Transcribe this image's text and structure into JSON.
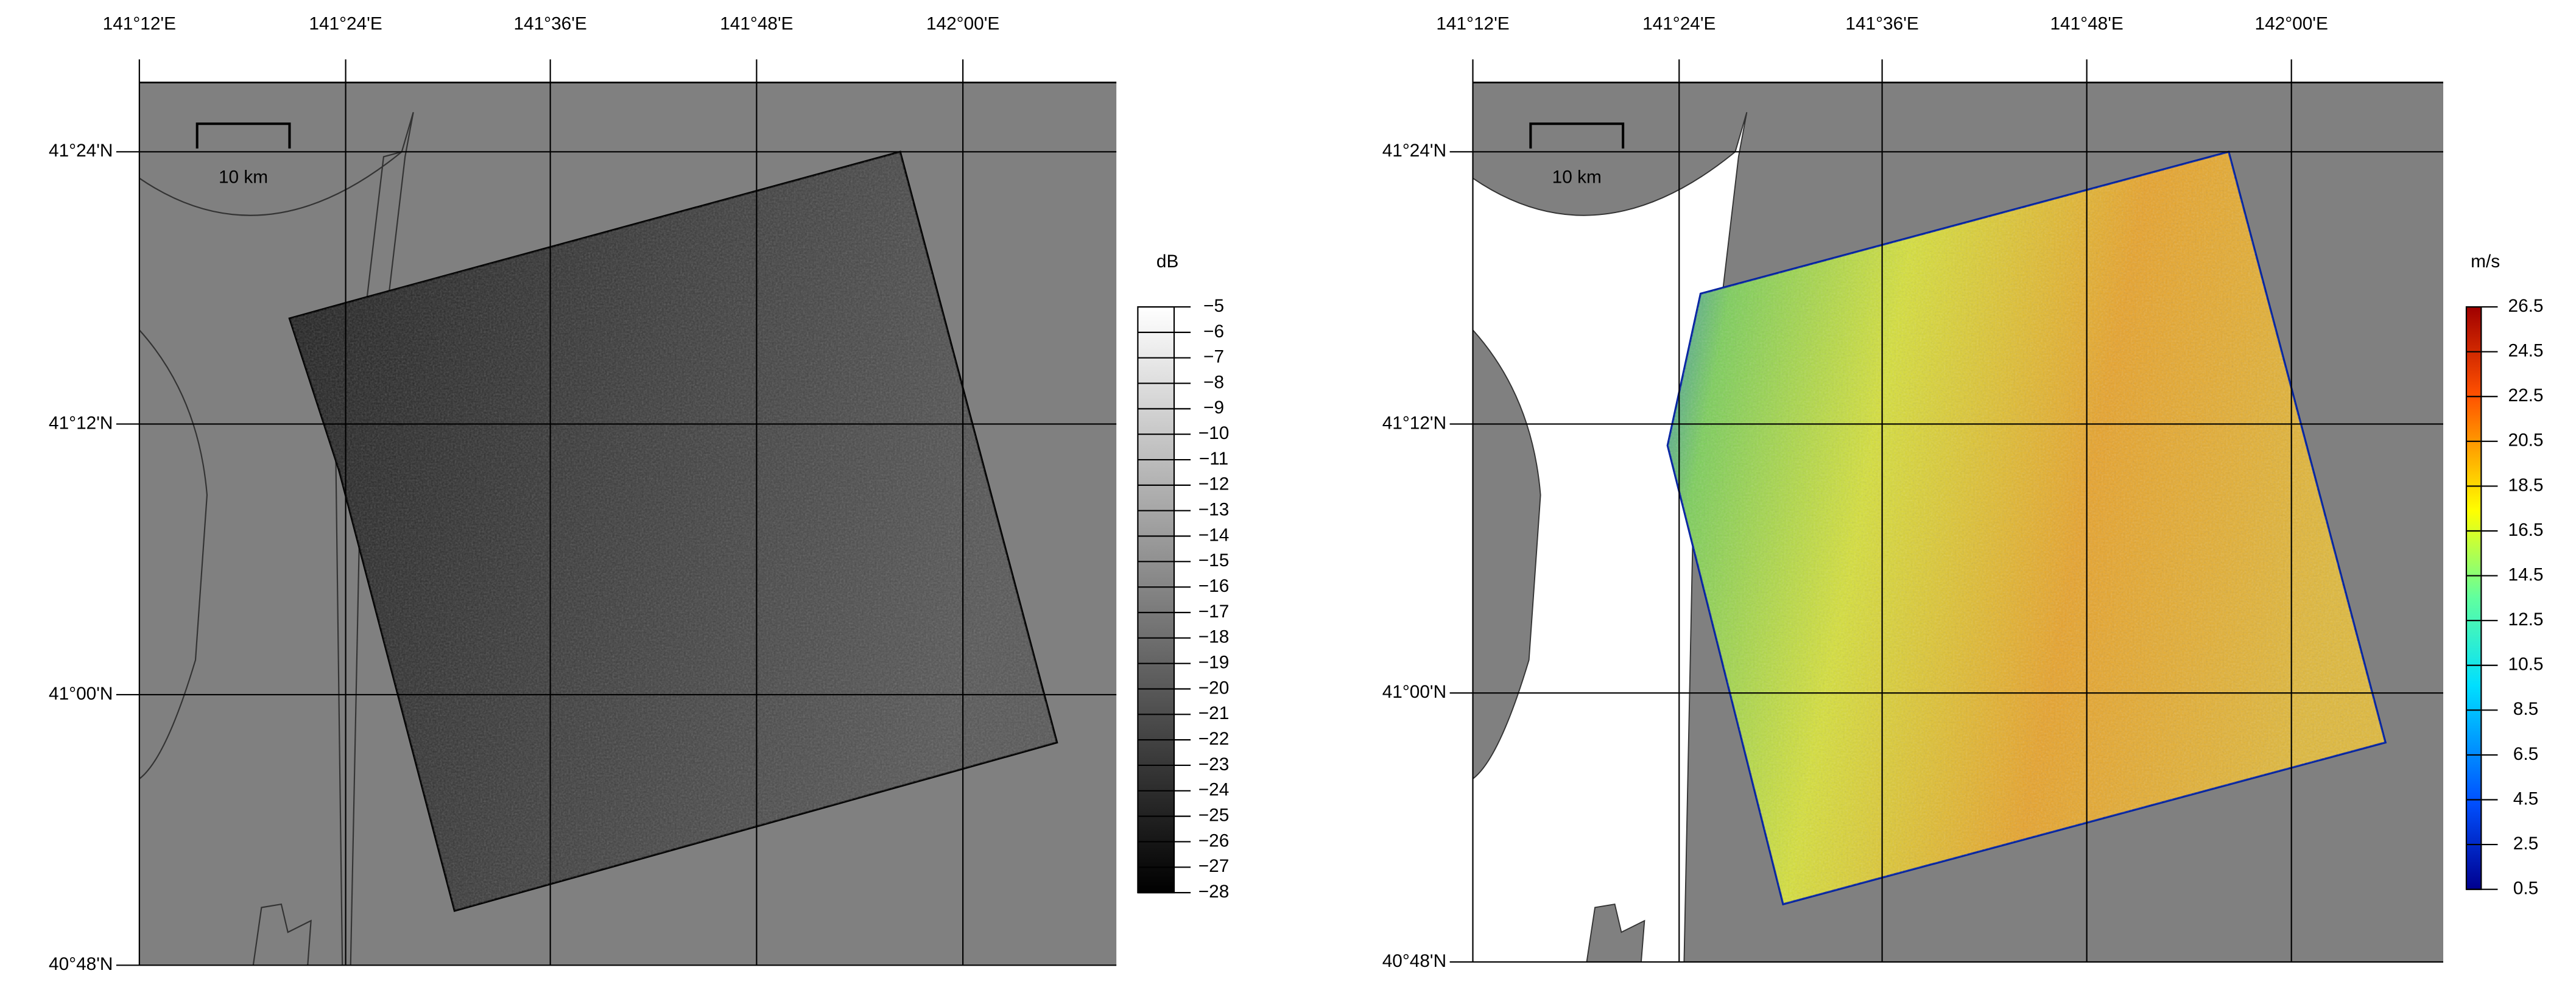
{
  "maps": [
    {
      "lon_labels": [
        "141°12'E",
        "141°24'E",
        "141°36'E",
        "141°48'E",
        "142°00'E"
      ],
      "lat_labels": [
        "41°24'N",
        "41°12'N",
        "41°00'N",
        "40°48'N"
      ],
      "scale_bar": "10 km",
      "colorbar": {
        "units": "dB",
        "lim": [
          -28,
          -5
        ],
        "ticks": [
          {
            "value": -5,
            "label": "−5"
          },
          {
            "value": -6,
            "label": "−6"
          },
          {
            "value": -7,
            "label": "−7"
          },
          {
            "value": -8,
            "label": "−8"
          },
          {
            "value": -9,
            "label": "−9"
          },
          {
            "value": -10,
            "label": "−10"
          },
          {
            "value": -11,
            "label": "−11"
          },
          {
            "value": -12,
            "label": "−12"
          },
          {
            "value": -13,
            "label": "−13"
          },
          {
            "value": -14,
            "label": "−14"
          },
          {
            "value": -15,
            "label": "−15"
          },
          {
            "value": -16,
            "label": "−16"
          },
          {
            "value": -17,
            "label": "−17"
          },
          {
            "value": -18,
            "label": "−18"
          },
          {
            "value": -19,
            "label": "−19"
          },
          {
            "value": -20,
            "label": "−20"
          },
          {
            "value": -21,
            "label": "−21"
          },
          {
            "value": -22,
            "label": "−22"
          },
          {
            "value": -23,
            "label": "−23"
          },
          {
            "value": -24,
            "label": "−24"
          },
          {
            "value": -25,
            "label": "−25"
          },
          {
            "value": -26,
            "label": "−26"
          },
          {
            "value": -27,
            "label": "−27"
          },
          {
            "value": -28,
            "label": "−28"
          }
        ]
      }
    },
    {
      "lon_labels": [
        "141°12'E",
        "141°24'E",
        "141°36'E",
        "141°48'E",
        "142°00'E"
      ],
      "lat_labels": [
        "41°24'N",
        "41°12'N",
        "41°00'N",
        "40°48'N"
      ],
      "scale_bar": "10 km",
      "colorbar": {
        "units": "m/s",
        "lim": [
          0.5,
          26.5
        ],
        "ticks": [
          26.5,
          24.5,
          22.5,
          20.5,
          18.5,
          16.5,
          14.5,
          12.5,
          10.5,
          8.5,
          6.5,
          4.5,
          2.5,
          0.5
        ]
      }
    }
  ]
}
